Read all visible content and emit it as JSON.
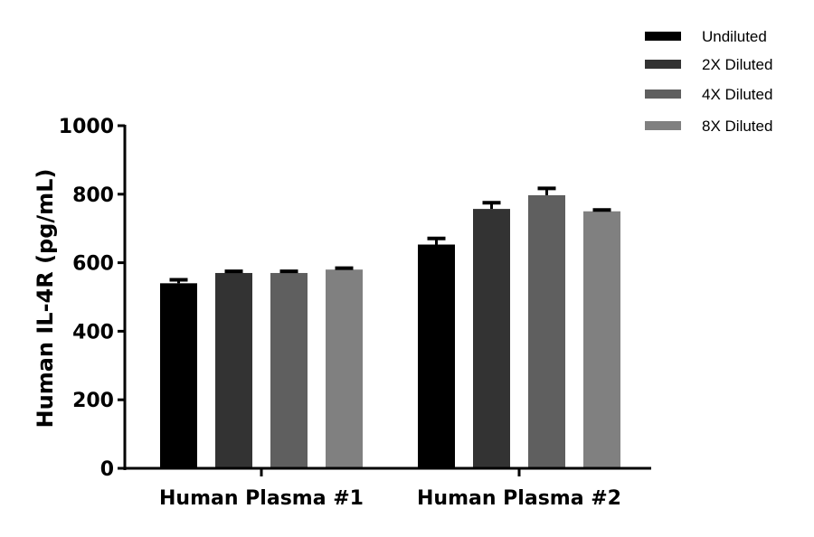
{
  "chart_data": {
    "type": "bar",
    "title": "",
    "xlabel": "",
    "ylabel": "Human IL-4R (pg/mL)",
    "ylim": [
      0,
      1000
    ],
    "yticks": [
      0,
      200,
      400,
      600,
      800,
      1000
    ],
    "grid": false,
    "legend_position": "top-right",
    "categories": [
      "Human Plasma #1",
      "Human Plasma #2"
    ],
    "series": [
      {
        "name": "Undiluted",
        "color": "#000000",
        "values": [
          540,
          653
        ],
        "errors": [
          10,
          18
        ]
      },
      {
        "name": "2X Diluted",
        "color": "#333333",
        "values": [
          570,
          757
        ],
        "errors": [
          5,
          18
        ]
      },
      {
        "name": "4X Diluted",
        "color": "#5f5f5f",
        "values": [
          570,
          797
        ],
        "errors": [
          5,
          20
        ]
      },
      {
        "name": "8X Diluted",
        "color": "#808080",
        "values": [
          580,
          750
        ],
        "errors": [
          4,
          4
        ]
      }
    ]
  }
}
